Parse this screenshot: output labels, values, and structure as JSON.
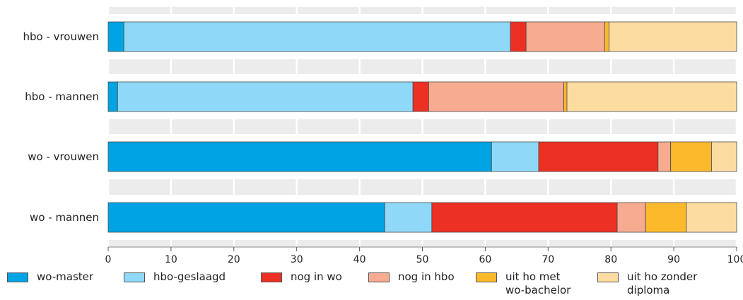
{
  "chart_data": {
    "type": "bar",
    "orientation": "horizontal",
    "stacked": true,
    "categories": [
      "hbo - vrouwen",
      "hbo - mannen",
      "wo - vrouwen",
      "wo - mannen"
    ],
    "series": [
      {
        "name": "wo-master",
        "color": "#00a4e4",
        "values": [
          2.5,
          1.5,
          61.0,
          44.0
        ]
      },
      {
        "name": "hbo-geslaagd",
        "color": "#8fd8f8",
        "values": [
          61.5,
          47.0,
          7.5,
          7.5
        ]
      },
      {
        "name": "nog in wo",
        "color": "#ed3024",
        "values": [
          2.5,
          2.5,
          19.0,
          29.5
        ]
      },
      {
        "name": "nog in hbo",
        "color": "#f7ab91",
        "values": [
          12.5,
          21.5,
          2.0,
          4.5
        ]
      },
      {
        "name": "uit ho met\nwo-bachelor",
        "color": "#fdb92c",
        "values": [
          0.7,
          0.5,
          6.5,
          6.5
        ]
      },
      {
        "name": "uit ho zonder\ndiploma",
        "color": "#fddca2",
        "values": [
          20.3,
          27.0,
          4.0,
          8.0
        ]
      }
    ],
    "xticks": [
      0,
      10,
      20,
      30,
      40,
      50,
      60,
      70,
      80,
      90,
      100
    ],
    "xlim": [
      0,
      100
    ],
    "grid": "vertical",
    "legend_position": "bottom"
  }
}
